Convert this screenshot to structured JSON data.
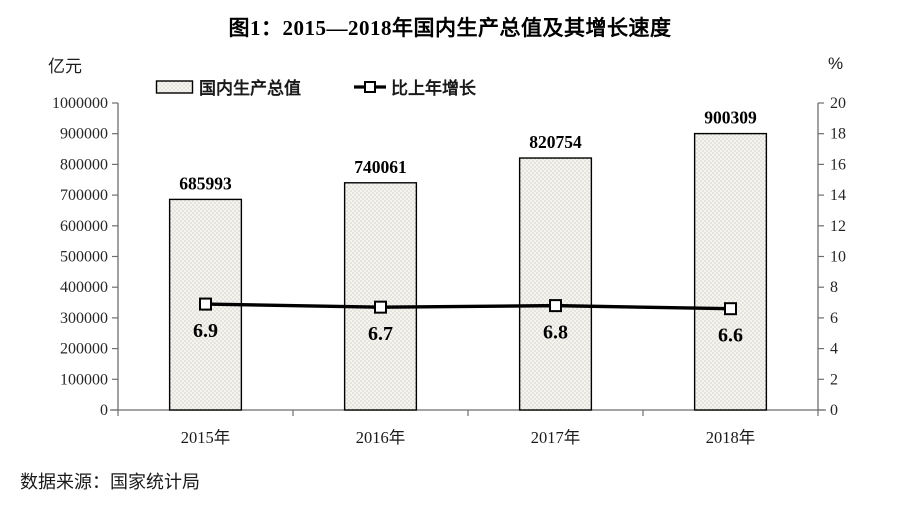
{
  "title": "图1：2015—2018年国内生产总值及其增长速度",
  "left_axis_unit": "亿元",
  "right_axis_unit": "%",
  "legend": {
    "bar_label": "国内生产总值",
    "line_label": "比上年增长"
  },
  "source_note": "数据来源：国家统计局",
  "colors": {
    "text": "#1a1a1a",
    "axis": "#6e6e6e",
    "bar_fill_base": "#f5f4ef",
    "bar_dot": "#a9a79d",
    "bar_border": "#000000",
    "line": "#000000",
    "marker_fill": "#ffffff"
  },
  "chart_data": {
    "type": "bar",
    "subtype": "bar+line combo",
    "title": "图1：2015—2018年国内生产总值及其增长速度",
    "categories": [
      "2015年",
      "2016年",
      "2017年",
      "2018年"
    ],
    "series": [
      {
        "name": "国内生产总值",
        "type": "bar",
        "axis": "left",
        "unit": "亿元",
        "values": [
          685993,
          740061,
          820754,
          900309
        ]
      },
      {
        "name": "比上年增长",
        "type": "line",
        "axis": "right",
        "unit": "%",
        "values": [
          6.9,
          6.7,
          6.8,
          6.6
        ]
      }
    ],
    "left_axis": {
      "label": "亿元",
      "min": 0,
      "max": 1000000,
      "step": 100000
    },
    "right_axis": {
      "label": "%",
      "min": 0,
      "max": 20,
      "step": 2
    },
    "grid": false,
    "legend_position": "top",
    "data_labels": true
  }
}
